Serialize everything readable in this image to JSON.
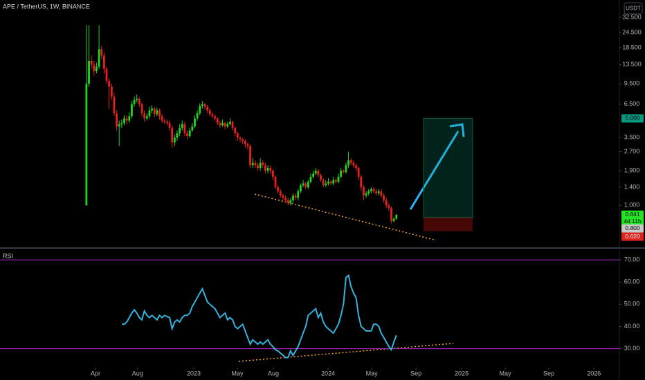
{
  "chart_data": {
    "type": "candlestick",
    "title": "APE / TetherUS, 1W, BINANCE",
    "currency": "USDT",
    "log_scale": true,
    "up_color": "#22d622",
    "down_color": "#e8211e",
    "x": [
      0,
      1,
      2,
      3,
      4,
      5,
      6,
      7,
      8,
      9,
      10,
      11,
      12,
      13,
      14,
      15,
      16,
      17,
      18,
      19,
      20,
      21,
      22,
      23,
      24,
      25,
      26,
      27,
      28,
      29,
      30,
      31,
      32,
      33,
      34,
      35,
      36,
      37,
      38,
      39,
      40,
      41,
      42,
      43,
      44,
      45,
      46,
      47,
      48,
      49,
      50,
      51,
      52,
      53,
      54,
      55,
      56,
      57,
      58,
      59,
      60,
      61,
      62,
      63,
      64,
      65,
      66,
      67,
      68,
      69,
      70,
      71,
      72,
      73,
      74,
      75,
      76,
      77,
      78,
      79,
      80,
      81,
      82,
      83,
      84,
      85,
      86,
      87,
      88,
      89,
      90,
      91,
      92,
      93,
      94,
      95,
      96,
      97,
      98,
      99,
      100,
      101,
      102,
      103,
      104,
      105,
      106,
      107,
      108,
      109,
      110,
      111,
      112,
      113,
      114,
      115,
      116,
      117,
      118,
      119,
      120,
      121,
      122,
      123
    ],
    "candles": [
      [
        1.0,
        28,
        1.0,
        9.5
      ],
      [
        9.5,
        28,
        9,
        14.5
      ],
      [
        14.5,
        16,
        12.5,
        13.5
      ],
      [
        13.5,
        14.5,
        11,
        12
      ],
      [
        12,
        14,
        11.5,
        13
      ],
      [
        13,
        28,
        12.5,
        18
      ],
      [
        18,
        19,
        15,
        16
      ],
      [
        16,
        17,
        11.5,
        12.5
      ],
      [
        12.5,
        13,
        9.5,
        10
      ],
      [
        10,
        10.5,
        6,
        9
      ],
      [
        9,
        9.5,
        7,
        7.5
      ],
      [
        7.5,
        8,
        5.2,
        5.5
      ],
      [
        5.5,
        5.8,
        4.0,
        4.3
      ],
      [
        4.3,
        4.8,
        3,
        4.5
      ],
      [
        4.5,
        4.9,
        4.2,
        4.6
      ],
      [
        4.6,
        5.3,
        4.4,
        5.0
      ],
      [
        5.0,
        5.3,
        4.5,
        4.8
      ],
      [
        4.8,
        5.6,
        4.6,
        5.2
      ],
      [
        5.2,
        6.9,
        5.0,
        6.5
      ],
      [
        6.5,
        7.5,
        6.2,
        7.0
      ],
      [
        7.0,
        7.8,
        6.7,
        7.2
      ],
      [
        7.2,
        7.4,
        6.2,
        6.5
      ],
      [
        6.5,
        6.7,
        5.2,
        5.5
      ],
      [
        5.5,
        5.8,
        4.7,
        5.0
      ],
      [
        5.0,
        5.5,
        4.8,
        5.2
      ],
      [
        5.2,
        6.2,
        5.0,
        5.8
      ],
      [
        5.8,
        6.4,
        5.5,
        6.0
      ],
      [
        6.0,
        6.2,
        5.1,
        5.4
      ],
      [
        5.4,
        6.1,
        5.2,
        5.8
      ],
      [
        5.8,
        6.0,
        4.9,
        5.2
      ],
      [
        5.2,
        5.4,
        4.6,
        4.8
      ],
      [
        4.8,
        5.0,
        4.5,
        4.7
      ],
      [
        4.7,
        4.9,
        4.4,
        4.6
      ],
      [
        4.6,
        4.8,
        4.0,
        4.2
      ],
      [
        4.2,
        4.4,
        2.9,
        3.2
      ],
      [
        3.2,
        3.7,
        3.0,
        3.5
      ],
      [
        3.5,
        4.0,
        3.3,
        3.8
      ],
      [
        3.8,
        4.5,
        3.6,
        4.2
      ],
      [
        4.2,
        4.8,
        4.0,
        4.5
      ],
      [
        4.5,
        4.7,
        3.6,
        3.8
      ],
      [
        3.8,
        4.0,
        3.4,
        3.6
      ],
      [
        3.6,
        4.2,
        3.5,
        4.0
      ],
      [
        4.0,
        4.6,
        3.9,
        4.3
      ],
      [
        4.3,
        5.3,
        4.2,
        5.0
      ],
      [
        5.0,
        5.8,
        4.8,
        5.5
      ],
      [
        5.5,
        6.6,
        5.3,
        6.3
      ],
      [
        6.3,
        6.9,
        6.0,
        6.5
      ],
      [
        6.5,
        6.7,
        5.9,
        6.2
      ],
      [
        6.2,
        6.4,
        5.5,
        5.8
      ],
      [
        5.8,
        6.0,
        5.2,
        5.4
      ],
      [
        5.4,
        5.6,
        5.0,
        5.2
      ],
      [
        5.2,
        5.4,
        4.8,
        5.0
      ],
      [
        5.0,
        5.1,
        4.4,
        4.6
      ],
      [
        4.6,
        4.8,
        4.2,
        4.4
      ],
      [
        4.4,
        4.9,
        4.3,
        4.6
      ],
      [
        4.6,
        4.7,
        4.1,
        4.3
      ],
      [
        4.3,
        4.7,
        4.2,
        4.5
      ],
      [
        4.5,
        5.0,
        4.4,
        4.7
      ],
      [
        4.7,
        4.8,
        4.0,
        4.2
      ],
      [
        4.2,
        4.3,
        3.6,
        3.8
      ],
      [
        3.8,
        3.9,
        3.3,
        3.5
      ],
      [
        3.5,
        3.6,
        3.2,
        3.4
      ],
      [
        3.4,
        3.5,
        3.1,
        3.3
      ],
      [
        3.3,
        3.4,
        2.9,
        3.1
      ],
      [
        3.1,
        3.2,
        2.8,
        3.0
      ],
      [
        3.0,
        3.1,
        2.0,
        2.1
      ],
      [
        2.1,
        2.4,
        2.0,
        2.2
      ],
      [
        2.2,
        2.3,
        2.0,
        2.1
      ],
      [
        2.1,
        2.2,
        1.9,
        2.0
      ],
      [
        2.0,
        2.4,
        1.9,
        2.2
      ],
      [
        2.2,
        2.3,
        2.0,
        2.1
      ],
      [
        2.1,
        2.2,
        1.8,
        1.9
      ],
      [
        1.9,
        2.1,
        1.8,
        2.0
      ],
      [
        2.0,
        2.1,
        1.8,
        1.9
      ],
      [
        1.9,
        1.95,
        1.6,
        1.7
      ],
      [
        1.7,
        1.75,
        1.35,
        1.4
      ],
      [
        1.4,
        1.45,
        1.25,
        1.3
      ],
      [
        1.3,
        1.35,
        1.15,
        1.2
      ],
      [
        1.2,
        1.25,
        1.1,
        1.15
      ],
      [
        1.15,
        1.2,
        1.05,
        1.1
      ],
      [
        1.1,
        1.15,
        1.0,
        1.05
      ],
      [
        1.05,
        1.15,
        1.0,
        1.1
      ],
      [
        1.1,
        1.25,
        1.05,
        1.2
      ],
      [
        1.2,
        1.25,
        1.1,
        1.15
      ],
      [
        1.15,
        1.35,
        1.1,
        1.3
      ],
      [
        1.3,
        1.5,
        1.25,
        1.45
      ],
      [
        1.45,
        1.6,
        1.4,
        1.5
      ],
      [
        1.5,
        1.55,
        1.35,
        1.4
      ],
      [
        1.4,
        1.6,
        1.35,
        1.55
      ],
      [
        1.55,
        1.8,
        1.5,
        1.7
      ],
      [
        1.7,
        1.9,
        1.65,
        1.8
      ],
      [
        1.8,
        2.0,
        1.75,
        1.9
      ],
      [
        1.9,
        1.95,
        1.7,
        1.75
      ],
      [
        1.75,
        1.8,
        1.55,
        1.6
      ],
      [
        1.6,
        1.65,
        1.4,
        1.45
      ],
      [
        1.45,
        1.6,
        1.4,
        1.5
      ],
      [
        1.5,
        1.65,
        1.45,
        1.55
      ],
      [
        1.55,
        1.6,
        1.45,
        1.5
      ],
      [
        1.5,
        1.7,
        1.45,
        1.6
      ],
      [
        1.6,
        1.65,
        1.5,
        1.55
      ],
      [
        1.55,
        1.8,
        1.5,
        1.7
      ],
      [
        1.7,
        2.0,
        1.65,
        1.9
      ],
      [
        1.9,
        1.95,
        1.8,
        1.85
      ],
      [
        1.85,
        2.2,
        1.8,
        2.1
      ],
      [
        2.1,
        2.7,
        2.0,
        2.3
      ],
      [
        2.3,
        2.4,
        2.1,
        2.2
      ],
      [
        2.2,
        2.3,
        2.0,
        2.1
      ],
      [
        2.1,
        2.15,
        1.9,
        2.0
      ],
      [
        2.0,
        2.05,
        1.6,
        1.7
      ],
      [
        1.7,
        1.75,
        1.3,
        1.4
      ],
      [
        1.4,
        1.45,
        1.1,
        1.2
      ],
      [
        1.2,
        1.3,
        1.15,
        1.25
      ],
      [
        1.25,
        1.35,
        1.2,
        1.3
      ],
      [
        1.3,
        1.4,
        1.25,
        1.35
      ],
      [
        1.35,
        1.4,
        1.25,
        1.3
      ],
      [
        1.3,
        1.35,
        1.2,
        1.25
      ],
      [
        1.25,
        1.35,
        1.2,
        1.3
      ],
      [
        1.3,
        1.35,
        1.15,
        1.2
      ],
      [
        1.2,
        1.25,
        1.05,
        1.1
      ],
      [
        1.1,
        1.15,
        0.95,
        1.0
      ],
      [
        1.0,
        1.05,
        0.9,
        0.95
      ],
      [
        0.95,
        0.98,
        0.72,
        0.75
      ],
      [
        0.75,
        0.8,
        0.73,
        0.78
      ],
      [
        0.78,
        0.85,
        0.77,
        0.841
      ]
    ],
    "xlim": [
      -34.3,
      211.5
    ],
    "xticks": [
      {
        "value": 3.6,
        "label": "Apr"
      },
      {
        "value": 20.3,
        "label": "Aug"
      },
      {
        "value": 42.6,
        "label": "2023"
      },
      {
        "value": 59.9,
        "label": "May"
      },
      {
        "value": 74.2,
        "label": "Aug"
      },
      {
        "value": 95.9,
        "label": "2024"
      },
      {
        "value": 113.2,
        "label": "May"
      },
      {
        "value": 130.8,
        "label": "Sep"
      },
      {
        "value": 148.9,
        "label": "2025"
      },
      {
        "value": 166.2,
        "label": "May"
      },
      {
        "value": 183.5,
        "label": "Sep"
      },
      {
        "value": 201.4,
        "label": "2026"
      }
    ],
    "ylim": [
      0.46,
      44.7
    ],
    "yticks": [
      {
        "value": 32.5,
        "label": "32.500"
      },
      {
        "value": 24.5,
        "label": "24.500"
      },
      {
        "value": 18.5,
        "label": "18.500"
      },
      {
        "value": 13.5,
        "label": "13.500"
      },
      {
        "value": 9.5,
        "label": "9.500"
      },
      {
        "value": 6.5,
        "label": "6.500"
      },
      {
        "value": 3.5,
        "label": "3.500"
      },
      {
        "value": 2.7,
        "label": "2.700"
      },
      {
        "value": 1.9,
        "label": "1.900"
      },
      {
        "value": 1.4,
        "label": "1.400"
      },
      {
        "value": 1,
        "label": "1.000"
      }
    ],
    "price_labels": [
      {
        "value": 5,
        "label": "5.000",
        "color": "#089981"
      },
      {
        "value": 0.841,
        "label": "0.841",
        "color": "#22e622"
      },
      {
        "value": 0.8,
        "label": "0.800",
        "color": "#c8c8c8"
      },
      {
        "value": 0.62,
        "label": "0.620",
        "color": "#e0201b"
      }
    ],
    "countdown": "4d 11h",
    "rsi": {
      "name": "RSI",
      "color": "#35b3dc",
      "level_color": "#b026c9",
      "levels": [
        70,
        30
      ],
      "values": [
        null,
        null,
        null,
        null,
        null,
        null,
        null,
        null,
        null,
        null,
        null,
        null,
        null,
        null,
        41,
        41,
        42,
        44,
        46,
        47.5,
        46,
        44,
        43,
        47,
        45,
        44,
        45,
        44,
        43,
        45,
        44,
        45,
        44.5,
        44,
        39,
        42,
        43,
        42,
        44,
        45,
        45,
        46,
        49,
        51,
        53,
        55,
        57,
        54,
        51,
        50,
        49,
        48,
        46,
        44,
        45,
        46,
        43,
        44,
        43,
        40,
        39,
        40,
        41,
        38,
        35,
        32,
        34,
        33,
        32,
        33,
        32,
        33,
        34,
        32,
        31,
        29.5,
        29,
        28,
        27,
        26,
        26,
        29,
        27,
        29,
        31,
        34,
        37,
        40,
        45,
        46,
        47,
        48,
        44,
        46,
        42,
        40,
        39,
        38,
        37,
        39,
        41,
        45,
        50,
        62,
        63,
        58,
        55,
        53,
        45,
        40,
        39,
        38,
        38,
        38,
        41,
        41,
        40,
        37,
        35,
        33,
        31,
        29.5,
        33,
        36
      ],
      "ylim": [
        21.5,
        75
      ],
      "yticks": [
        {
          "value": 70,
          "label": "70.00"
        },
        {
          "value": 60,
          "label": "60.00"
        },
        {
          "value": 50,
          "label": "50.00"
        },
        {
          "value": 40,
          "label": "40.00"
        },
        {
          "value": 30,
          "label": "30.00"
        }
      ]
    }
  }
}
